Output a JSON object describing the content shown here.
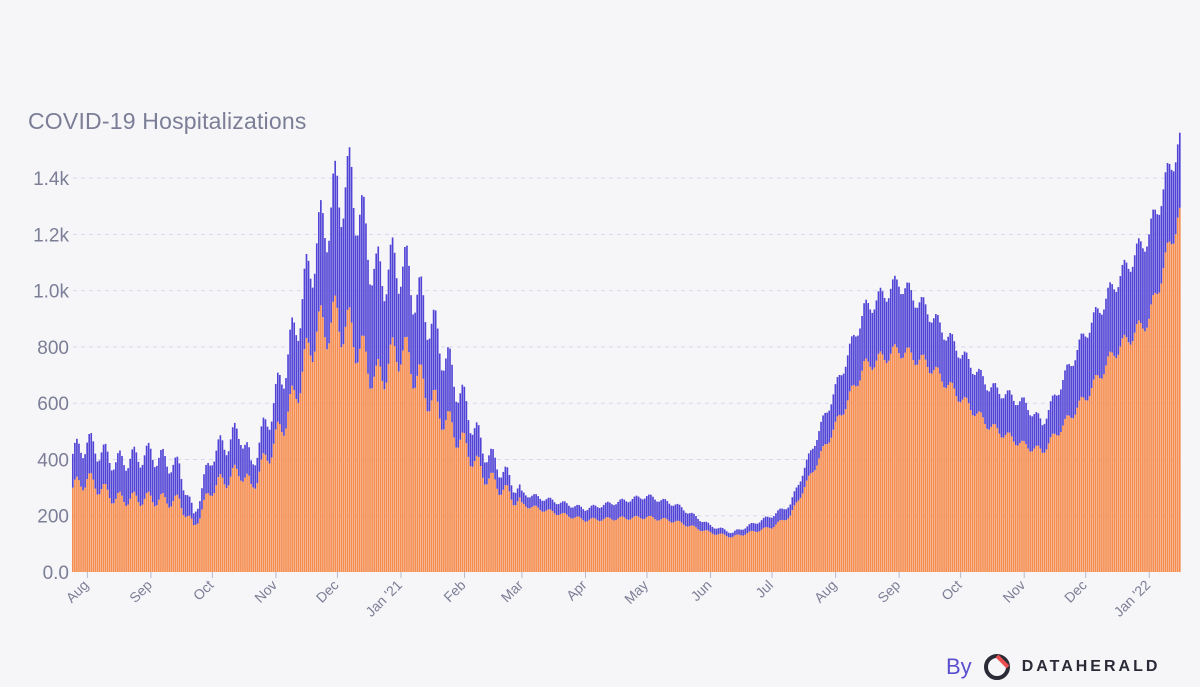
{
  "title": "COVID-19 Hospitalizations",
  "brand": {
    "by_label": "By",
    "name": "DATAHERALD",
    "logo_icon": "dataherald-logo-icon"
  },
  "colors": {
    "background": "#f6f6f8",
    "series_a": "#f58b4c",
    "series_b": "#5043d6",
    "grid": "#d7d7ee",
    "text": "#7b7e96"
  },
  "chart_data": {
    "type": "bar",
    "stacked": true,
    "title": "COVID-19 Hospitalizations",
    "xlabel": "",
    "ylabel": "",
    "ylim": [
      0,
      1500
    ],
    "yticks": [
      0,
      200,
      400,
      600,
      800,
      1000,
      1200,
      1400
    ],
    "ytick_labels": [
      "0.0",
      "200",
      "400",
      "600",
      "800",
      "1.0k",
      "1.2k",
      "1.4k"
    ],
    "grid": true,
    "x_range": [
      "2020-07-25",
      "2022-01-16"
    ],
    "xticks": [
      {
        "date": "2020-08-01",
        "label": "Aug"
      },
      {
        "date": "2020-09-01",
        "label": "Sep"
      },
      {
        "date": "2020-10-01",
        "label": "Oct"
      },
      {
        "date": "2020-11-01",
        "label": "Nov"
      },
      {
        "date": "2020-12-01",
        "label": "Dec"
      },
      {
        "date": "2021-01-01",
        "label": "Jan '21"
      },
      {
        "date": "2021-02-01",
        "label": "Feb"
      },
      {
        "date": "2021-03-01",
        "label": "Mar"
      },
      {
        "date": "2021-04-01",
        "label": "Apr"
      },
      {
        "date": "2021-05-01",
        "label": "May"
      },
      {
        "date": "2021-06-01",
        "label": "Jun"
      },
      {
        "date": "2021-07-01",
        "label": "Jul"
      },
      {
        "date": "2021-08-01",
        "label": "Aug"
      },
      {
        "date": "2021-09-01",
        "label": "Sep"
      },
      {
        "date": "2021-10-01",
        "label": "Oct"
      },
      {
        "date": "2021-11-01",
        "label": "Nov"
      },
      {
        "date": "2021-12-01",
        "label": "Dec"
      },
      {
        "date": "2022-01-01",
        "label": "Jan '22"
      }
    ],
    "anchors": [
      {
        "date": "2020-07-25",
        "lower": 300,
        "total": 420
      },
      {
        "date": "2020-08-01",
        "lower": 330,
        "total": 460
      },
      {
        "date": "2020-08-15",
        "lower": 260,
        "total": 390
      },
      {
        "date": "2020-09-01",
        "lower": 260,
        "total": 420
      },
      {
        "date": "2020-09-15",
        "lower": 250,
        "total": 370
      },
      {
        "date": "2020-09-22",
        "lower": 160,
        "total": 200
      },
      {
        "date": "2020-10-01",
        "lower": 300,
        "total": 420
      },
      {
        "date": "2020-10-15",
        "lower": 360,
        "total": 500
      },
      {
        "date": "2020-10-20",
        "lower": 300,
        "total": 380
      },
      {
        "date": "2020-11-01",
        "lower": 470,
        "total": 620
      },
      {
        "date": "2020-11-10",
        "lower": 620,
        "total": 850
      },
      {
        "date": "2020-11-20",
        "lower": 850,
        "total": 1150
      },
      {
        "date": "2020-12-01",
        "lower": 900,
        "total": 1350
      },
      {
        "date": "2020-12-08",
        "lower": 850,
        "total": 1380
      },
      {
        "date": "2020-12-20",
        "lower": 680,
        "total": 1050
      },
      {
        "date": "2021-01-01",
        "lower": 800,
        "total": 1100
      },
      {
        "date": "2021-01-15",
        "lower": 620,
        "total": 900
      },
      {
        "date": "2021-02-01",
        "lower": 450,
        "total": 600
      },
      {
        "date": "2021-02-10",
        "lower": 350,
        "total": 440
      },
      {
        "date": "2021-03-01",
        "lower": 240,
        "total": 280
      },
      {
        "date": "2021-04-01",
        "lower": 185,
        "total": 225
      },
      {
        "date": "2021-05-01",
        "lower": 195,
        "total": 270
      },
      {
        "date": "2021-05-15",
        "lower": 180,
        "total": 240
      },
      {
        "date": "2021-06-01",
        "lower": 140,
        "total": 165
      },
      {
        "date": "2021-06-12",
        "lower": 125,
        "total": 140
      },
      {
        "date": "2021-07-01",
        "lower": 160,
        "total": 200
      },
      {
        "date": "2021-07-10",
        "lower": 200,
        "total": 240
      },
      {
        "date": "2021-08-01",
        "lower": 520,
        "total": 650
      },
      {
        "date": "2021-08-15",
        "lower": 730,
        "total": 930
      },
      {
        "date": "2021-09-01",
        "lower": 790,
        "total": 1030
      },
      {
        "date": "2021-09-15",
        "lower": 740,
        "total": 930
      },
      {
        "date": "2021-10-01",
        "lower": 620,
        "total": 780
      },
      {
        "date": "2021-10-15",
        "lower": 520,
        "total": 660
      },
      {
        "date": "2021-11-01",
        "lower": 450,
        "total": 600
      },
      {
        "date": "2021-11-10",
        "lower": 430,
        "total": 530
      },
      {
        "date": "2021-12-01",
        "lower": 620,
        "total": 850
      },
      {
        "date": "2021-12-15",
        "lower": 780,
        "total": 1020
      },
      {
        "date": "2022-01-01",
        "lower": 900,
        "total": 1200
      },
      {
        "date": "2022-01-15",
        "lower": 1260,
        "total": 1520
      }
    ]
  }
}
